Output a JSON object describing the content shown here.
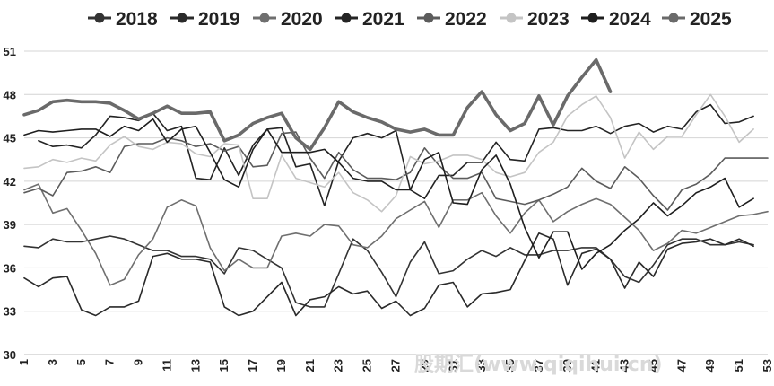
{
  "chart_data": {
    "type": "line",
    "title": "",
    "xlabel": "",
    "ylabel": "",
    "ylim": [
      30,
      51
    ],
    "yticks": [
      30,
      33,
      36,
      39,
      42,
      45,
      48,
      51
    ],
    "xticks": [
      1,
      3,
      5,
      7,
      9,
      11,
      13,
      15,
      17,
      19,
      21,
      23,
      25,
      27,
      29,
      31,
      33,
      35,
      37,
      39,
      41,
      43,
      45,
      47,
      49,
      51,
      53
    ],
    "grid": "horizontal",
    "legend_position": "top",
    "watermark": "股期汇(www.qiqihui.cn)",
    "series": [
      {
        "name": "2018",
        "color": "#333333",
        "width": 1.6,
        "start": 1,
        "values": [
          37.5,
          37.4,
          38.0,
          37.8,
          37.8,
          38.0,
          38.2,
          38.0,
          37.6,
          37.2,
          37.2,
          36.8,
          36.8,
          36.6,
          35.6,
          37.4,
          37.2,
          36.6,
          36.0,
          33.6,
          33.3,
          33.3,
          35.6,
          38.0,
          37.2,
          35.7,
          34.0,
          36.4,
          37.8,
          35.6,
          35.8,
          36.6,
          37.2,
          36.8,
          37.4,
          36.9,
          36.9,
          37.2,
          37.2,
          37.4,
          37.4,
          36.6,
          35.4,
          35.0,
          36.2,
          37.6,
          38.0,
          38.0,
          37.6,
          37.6,
          37.8,
          37.6
        ]
      },
      {
        "name": "2019",
        "color": "#2a2a2a",
        "width": 1.6,
        "start": 1,
        "values": [
          35.3,
          34.7,
          35.3,
          35.4,
          33.1,
          32.7,
          33.3,
          33.3,
          33.7,
          36.8,
          37.0,
          36.6,
          36.6,
          36.4,
          33.3,
          32.7,
          33.0,
          34.0,
          35.0,
          32.7,
          33.8,
          34.0,
          34.7,
          34.2,
          34.4,
          33.2,
          33.7,
          32.7,
          33.2,
          34.8,
          35.0,
          33.3,
          34.2,
          34.3,
          34.5,
          36.5,
          38.4,
          38.0,
          34.8,
          37.0,
          37.3,
          36.6,
          34.6,
          36.4,
          35.4,
          37.3,
          37.7,
          37.8,
          38.0,
          37.6,
          38.0,
          37.5
        ]
      },
      {
        "name": "2020",
        "color": "#6f6f6f",
        "width": 1.6,
        "start": 1,
        "values": [
          41.4,
          41.8,
          39.8,
          40.1,
          38.6,
          37.0,
          34.8,
          35.2,
          36.9,
          38.0,
          40.2,
          40.7,
          40.3,
          37.4,
          35.8,
          36.6,
          36.0,
          36.0,
          38.2,
          38.4,
          38.2,
          39.0,
          38.9,
          37.6,
          37.4,
          38.2,
          39.4,
          40.0,
          40.6,
          38.8,
          40.7,
          40.7,
          41.2,
          39.6,
          38.4,
          39.8,
          40.7,
          39.2,
          39.9,
          40.4,
          40.8,
          40.4,
          39.5,
          38.6,
          37.2,
          37.7,
          38.6,
          38.4,
          38.8,
          39.2,
          39.6,
          39.7,
          39.9
        ]
      },
      {
        "name": "2021",
        "color": "#242424",
        "width": 1.6,
        "start": 2,
        "values": [
          44.8,
          44.4,
          44.5,
          44.3,
          45.2,
          46.5,
          46.4,
          46.2,
          46.7,
          45.5,
          45.8,
          42.2,
          42.1,
          44.3,
          42.4,
          44.5,
          45.6,
          45.7,
          43.0,
          43.2,
          40.3,
          43.4,
          45.0,
          45.3,
          45.0,
          45.5,
          41.4,
          40.8,
          42.4,
          42.4,
          43.3,
          43.3,
          44.7,
          43.5,
          43.4,
          45.6,
          45.7,
          45.5,
          45.5,
          45.8,
          45.3,
          45.8,
          46.0,
          45.4,
          45.8,
          45.6,
          46.8,
          47.3,
          46.0,
          46.1,
          46.5
        ]
      },
      {
        "name": "2022",
        "color": "#5c5c5c",
        "width": 1.6,
        "start": 1,
        "values": [
          41.2,
          41.5,
          41.0,
          42.6,
          42.7,
          43.0,
          42.6,
          44.4,
          44.6,
          44.6,
          45.0,
          44.8,
          44.4,
          44.6,
          44.1,
          44.4,
          43.0,
          43.1,
          45.3,
          45.4,
          43.6,
          42.2,
          44.0,
          42.8,
          42.2,
          42.2,
          42.1,
          42.6,
          44.3,
          43.1,
          42.2,
          42.2,
          42.6,
          40.8,
          40.6,
          40.4,
          40.7,
          41.1,
          41.6,
          42.9,
          42.0,
          41.5,
          43.0,
          42.2,
          41.0,
          40.0,
          41.4,
          41.8,
          42.5,
          43.6,
          43.6,
          43.6,
          43.6
        ]
      },
      {
        "name": "2023",
        "color": "#c4c4c4",
        "width": 1.6,
        "start": 1,
        "values": [
          42.9,
          43.0,
          43.5,
          43.3,
          43.6,
          43.4,
          44.5,
          45.1,
          44.4,
          44.2,
          44.7,
          44.6,
          43.9,
          43.7,
          44.6,
          44.5,
          40.8,
          40.8,
          43.8,
          42.2,
          41.9,
          41.6,
          42.6,
          41.2,
          40.7,
          39.9,
          41.0,
          43.7,
          43.2,
          43.4,
          43.8,
          43.8,
          43.5,
          42.6,
          42.3,
          42.6,
          44.0,
          44.7,
          46.5,
          47.3,
          47.9,
          46.4,
          43.6,
          45.4,
          44.2,
          45.1,
          45.1,
          46.6,
          48.0,
          46.5,
          44.7,
          45.6
        ]
      },
      {
        "name": "2024",
        "color": "#1e1e1e",
        "width": 1.6,
        "start": 1,
        "values": [
          45.2,
          45.5,
          45.4,
          45.5,
          45.6,
          45.6,
          45.1,
          45.8,
          45.5,
          46.3,
          44.7,
          45.6,
          45.8,
          44.0,
          42.1,
          41.6,
          44.2,
          45.6,
          44.0,
          44.0,
          44.0,
          44.2,
          43.3,
          42.2,
          42.0,
          42.0,
          41.4,
          41.4,
          43.5,
          44.0,
          40.5,
          40.4,
          42.8,
          43.8,
          41.8,
          38.8,
          36.7,
          38.5,
          38.5,
          35.9,
          37.0,
          37.6,
          38.6,
          39.4,
          40.5,
          39.6,
          40.3,
          41.2,
          41.6,
          42.2,
          40.2,
          40.8
        ]
      },
      {
        "name": "2025",
        "color": "#6a6a6a",
        "width": 3.6,
        "start": 1,
        "values": [
          46.6,
          46.9,
          47.5,
          47.6,
          47.5,
          47.5,
          47.4,
          46.9,
          46.3,
          46.7,
          47.2,
          46.7,
          46.7,
          46.8,
          44.8,
          45.2,
          46.0,
          46.4,
          46.7,
          45.0,
          44.2,
          45.7,
          47.5,
          46.8,
          46.4,
          46.1,
          45.6,
          45.4,
          45.6,
          45.2,
          45.2,
          47.1,
          48.2,
          46.6,
          45.5,
          46.0,
          47.9,
          45.9,
          47.9,
          49.2,
          50.4,
          48.2
        ]
      }
    ]
  }
}
